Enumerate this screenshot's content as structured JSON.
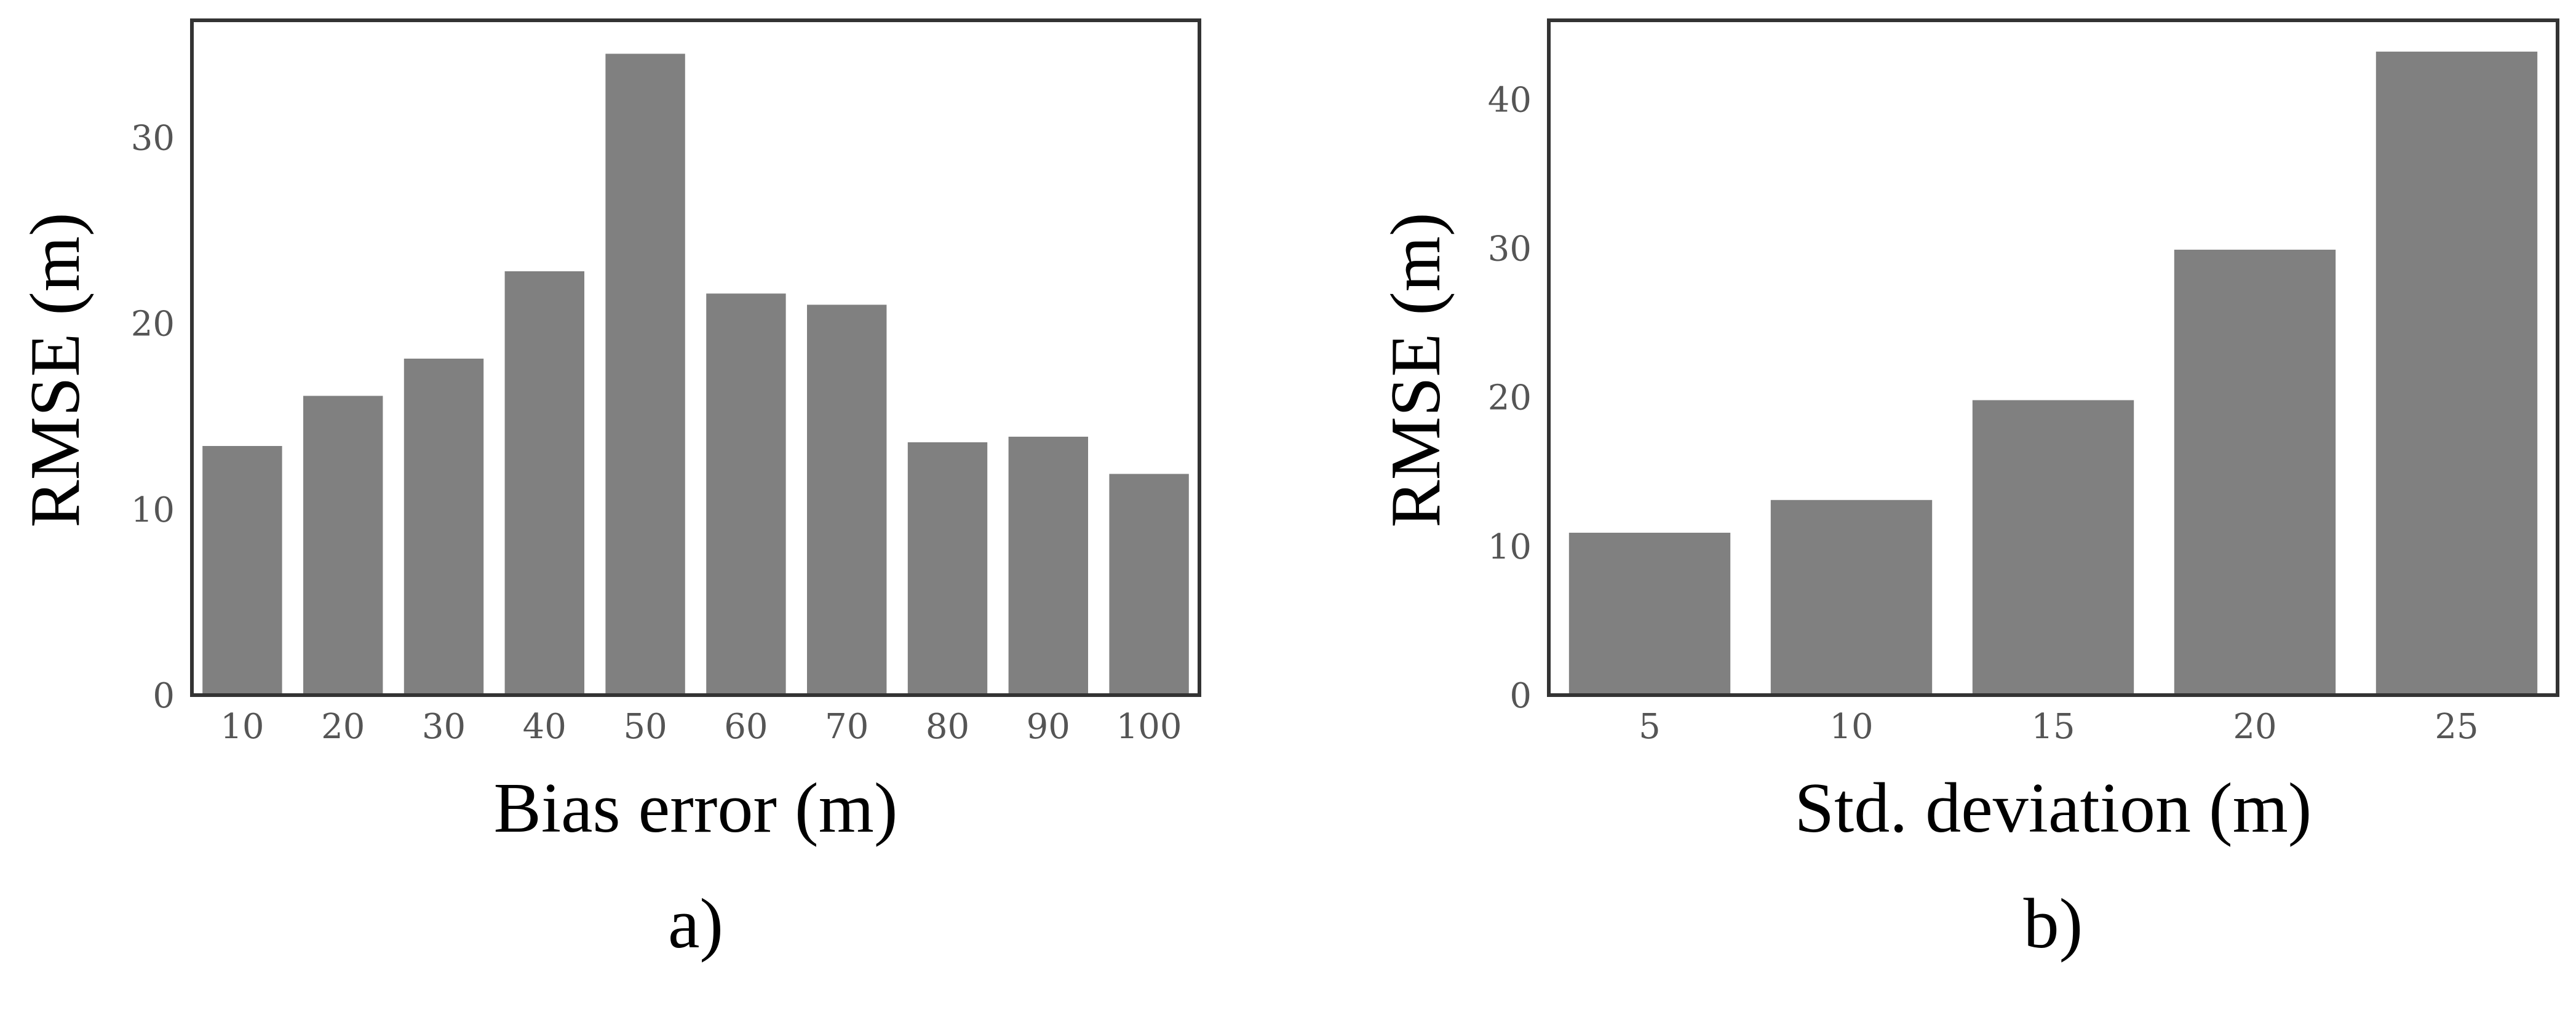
{
  "chart_data": [
    {
      "type": "bar",
      "panel_label": "a)",
      "title": "",
      "xlabel": "Bias error (m)",
      "ylabel": "RMSE (m)",
      "categories": [
        "10",
        "20",
        "30",
        "40",
        "50",
        "60",
        "70",
        "80",
        "90",
        "100"
      ],
      "values": [
        13.4,
        16.1,
        18.1,
        22.8,
        34.5,
        21.6,
        21.0,
        13.6,
        13.9,
        11.9
      ],
      "ylim": [
        0,
        36.3
      ],
      "yticks": [
        0,
        10,
        20,
        30
      ],
      "grid": false,
      "bar_color": "#808080"
    },
    {
      "type": "bar",
      "panel_label": "b)",
      "title": "",
      "xlabel": "Std. deviation (m)",
      "ylabel": "RMSE (m)",
      "categories": [
        "5",
        "10",
        "15",
        "20",
        "25"
      ],
      "values": [
        10.9,
        13.1,
        19.8,
        29.9,
        43.2
      ],
      "ylim": [
        0,
        45.3
      ],
      "yticks": [
        0,
        10,
        20,
        30,
        40
      ],
      "grid": false,
      "bar_color": "#808080"
    }
  ]
}
